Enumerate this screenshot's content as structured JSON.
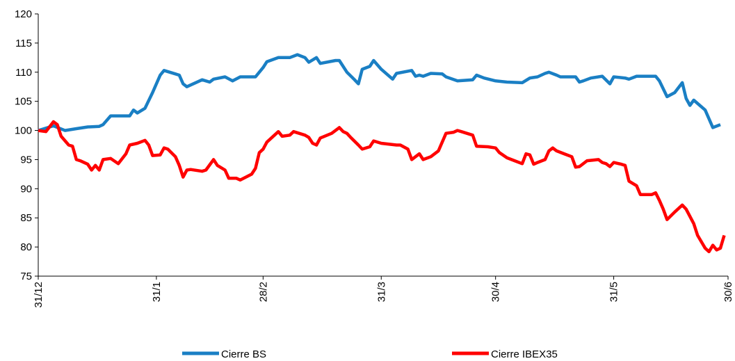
{
  "chart_data": {
    "type": "line",
    "xlim": [
      0,
      181
    ],
    "xticks": [
      {
        "value": 0,
        "label": "31/12"
      },
      {
        "value": 31,
        "label": "31/1"
      },
      {
        "value": 59,
        "label": "28/2"
      },
      {
        "value": 90,
        "label": "31/3"
      },
      {
        "value": 120,
        "label": "30/4"
      },
      {
        "value": 151,
        "label": "31/5"
      },
      {
        "value": 181,
        "label": "30/6"
      }
    ],
    "ylim": [
      75,
      120
    ],
    "yticks": [
      75,
      80,
      85,
      90,
      95,
      100,
      105,
      110,
      115,
      120
    ],
    "series": [
      {
        "name": "Cierre BS",
        "color": "#1a7fc4",
        "x": [
          0,
          4,
          7,
          10,
          13,
          16,
          17,
          19,
          24,
          25,
          26,
          28,
          30,
          32,
          33,
          37,
          38,
          39,
          43,
          45,
          46,
          49,
          51,
          53,
          57,
          59,
          60,
          63,
          66,
          68,
          70,
          71,
          73,
          74,
          78,
          79,
          81,
          83,
          84,
          85,
          87,
          88,
          90,
          93,
          94,
          98,
          99,
          100,
          101,
          103,
          106,
          107,
          110,
          114,
          115,
          117,
          120,
          123,
          127,
          129,
          131,
          133,
          134,
          136,
          137,
          141,
          142,
          143,
          145,
          148,
          150,
          151,
          154,
          155,
          157,
          162,
          163,
          165,
          167,
          169,
          170,
          171,
          172,
          175,
          177,
          179
        ],
        "values": [
          100,
          100.8,
          100,
          100.3,
          100.6,
          100.7,
          101,
          102.5,
          102.5,
          103.5,
          103,
          103.8,
          106.5,
          109.5,
          110.3,
          109.5,
          108,
          107.5,
          108.7,
          108.3,
          108.8,
          109.2,
          108.5,
          109.2,
          109.2,
          110.8,
          111.8,
          112.5,
          112.5,
          113,
          112.5,
          111.7,
          112.5,
          111.5,
          112,
          112,
          110,
          108.7,
          108,
          110.5,
          111,
          112,
          110.5,
          108.8,
          109.8,
          110.3,
          109.3,
          109.5,
          109.3,
          109.8,
          109.7,
          109.2,
          108.5,
          108.7,
          109.5,
          109,
          108.5,
          108.3,
          108.2,
          109,
          109.2,
          109.8,
          110,
          109.5,
          109.2,
          109.2,
          108.3,
          108.5,
          109,
          109.3,
          108,
          109.2,
          109,
          108.8,
          109.3,
          109.3,
          108.5,
          105.8,
          106.5,
          108.2,
          105.5,
          104.3,
          105.2,
          103.5,
          100.5,
          101
        ]
      },
      {
        "name": "Cierre IBEX35",
        "color": "#ff0000",
        "x": [
          0,
          2,
          4,
          5,
          6,
          8,
          9,
          10,
          11,
          13,
          14,
          15,
          16,
          17,
          19,
          21,
          23,
          24,
          26,
          28,
          29,
          30,
          32,
          33,
          34,
          36,
          37,
          38,
          39,
          40,
          43,
          44,
          46,
          47,
          49,
          50,
          52,
          53,
          56,
          57,
          58,
          59,
          60,
          63,
          64,
          66,
          67,
          70,
          71,
          72,
          73,
          74,
          77,
          78,
          79,
          80,
          81,
          82,
          84,
          85,
          87,
          88,
          90,
          94,
          95,
          97,
          98,
          100,
          101,
          103,
          105,
          107,
          109,
          110,
          111,
          114,
          115,
          118,
          120,
          121,
          123,
          125,
          127,
          128,
          129,
          130,
          131,
          133,
          134,
          135,
          136,
          138,
          140,
          141,
          142,
          144,
          147,
          148,
          149,
          150,
          151,
          153,
          154,
          155,
          157,
          158,
          161,
          162,
          163,
          164,
          165,
          167,
          169,
          170,
          172,
          173,
          175,
          176,
          177,
          178,
          179,
          180
        ],
        "values": [
          100,
          99.8,
          101.5,
          101,
          99,
          97.5,
          97.3,
          95,
          94.8,
          94.2,
          93.2,
          94,
          93.2,
          95,
          95.2,
          94.3,
          96,
          97.5,
          97.8,
          98.3,
          97.5,
          95.7,
          95.8,
          97,
          96.8,
          95.5,
          94,
          92,
          93.2,
          93.3,
          93,
          93.2,
          95,
          94,
          93.2,
          91.8,
          91.8,
          91.5,
          92.5,
          93.5,
          96.2,
          96.8,
          98,
          99.8,
          99,
          99.2,
          99.8,
          99.2,
          98.8,
          97.8,
          97.5,
          98.7,
          99.5,
          100,
          100.5,
          99.8,
          99.5,
          98.8,
          97.5,
          96.8,
          97.2,
          98.2,
          97.8,
          97.5,
          97.5,
          96.8,
          95,
          96,
          95,
          95.5,
          96.5,
          99.5,
          99.7,
          100,
          99.8,
          99.2,
          97.3,
          97.2,
          97,
          96.2,
          95.3,
          94.8,
          94.3,
          96,
          95.8,
          94.2,
          94.5,
          95,
          96.5,
          97,
          96.5,
          96,
          95.5,
          93.7,
          93.8,
          94.8,
          95,
          94.5,
          94.3,
          93.8,
          94.5,
          94.2,
          94,
          91.3,
          90.5,
          89,
          89,
          89.3,
          88,
          86.5,
          84.7,
          86,
          87.2,
          86.5,
          84,
          82,
          79.8,
          79.2,
          80.3,
          79.5,
          79.8,
          82
        ]
      }
    ],
    "legend": "bottom"
  }
}
